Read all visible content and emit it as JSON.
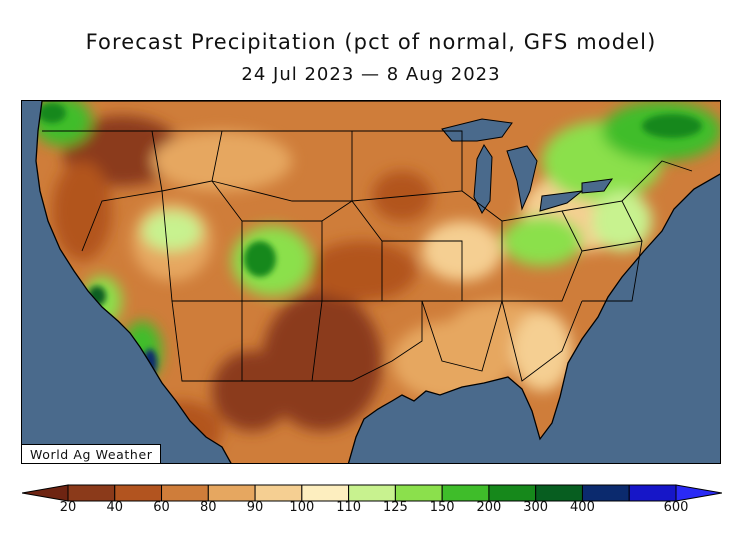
{
  "title": "Forecast Precipitation (pct of normal, GFS model)",
  "subtitle": "24 Jul 2023 — 8 Aug 2023",
  "credit": "World Ag Weather",
  "colorbar": {
    "bins": [
      {
        "label": "20",
        "color": "#8b3a1a"
      },
      {
        "label": "40",
        "color": "#b2541f"
      },
      {
        "label": "60",
        "color": "#cf7d3a"
      },
      {
        "label": "80",
        "color": "#e6a760"
      },
      {
        "label": "90",
        "color": "#f5cf92"
      },
      {
        "label": "100",
        "color": "#fdeebf"
      },
      {
        "label": "110",
        "color": "#c8f28f"
      },
      {
        "label": "125",
        "color": "#8be04c"
      },
      {
        "label": "150",
        "color": "#3fbd2a"
      },
      {
        "label": "200",
        "color": "#16881b"
      },
      {
        "label": "300",
        "color": "#075e20"
      },
      {
        "label": "400",
        "color": "#0b2a6e"
      },
      {
        "label": "600",
        "color": "#1616c8"
      }
    ],
    "under_color": "#6e2412",
    "over_color": "#2a2af5"
  },
  "ocean_color": "#4a6a8c"
}
